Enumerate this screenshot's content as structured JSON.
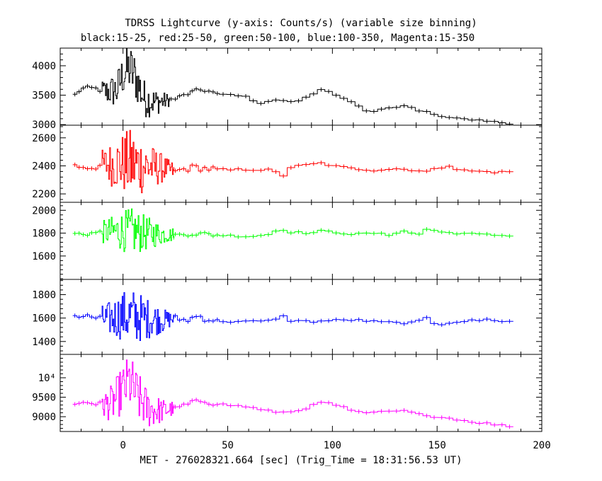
{
  "chart_data": {
    "type": "line",
    "title": "TDRSS Lightcurve (y-axis: Counts/s) (variable size binning)",
    "subtitle": "black:15-25, red:25-50, green:50-100, blue:100-350, Magenta:15-350",
    "xlabel": "MET - 276028321.664 [sec] (Trig_Time = 18:31:56.53 UT)",
    "xlim": [
      -30,
      200
    ],
    "xticks": [
      0,
      50,
      100,
      150,
      200
    ],
    "panels": [
      {
        "name": "black:15-25",
        "color": "#000000",
        "ylim": [
          2990,
          4300
        ],
        "yticks": [
          3000,
          3500,
          4000
        ],
        "ytick_labels": [
          "3000",
          "3500",
          "4000"
        ],
        "fine": {
          "x_start": -10,
          "x_end": 22,
          "step": 0.4,
          "spread_center": 900,
          "spread_edge": 220
        },
        "anchors": [
          [
            -24,
            3470
          ],
          [
            -20,
            3610
          ],
          [
            -14,
            3620
          ],
          [
            -8,
            3560
          ],
          [
            -3,
            3580
          ],
          [
            0,
            3850
          ],
          [
            3,
            3950
          ],
          [
            6,
            3800
          ],
          [
            10,
            3450
          ],
          [
            15,
            3380
          ],
          [
            20,
            3400
          ],
          [
            26,
            3450
          ],
          [
            32,
            3540
          ],
          [
            38,
            3600
          ],
          [
            45,
            3520
          ],
          [
            55,
            3500
          ],
          [
            60,
            3460
          ],
          [
            65,
            3360
          ],
          [
            70,
            3400
          ],
          [
            76,
            3420
          ],
          [
            80,
            3380
          ],
          [
            85,
            3420
          ],
          [
            90,
            3500
          ],
          [
            94,
            3600
          ],
          [
            98,
            3580
          ],
          [
            103,
            3480
          ],
          [
            108,
            3400
          ],
          [
            113,
            3300
          ],
          [
            117,
            3200
          ],
          [
            122,
            3240
          ],
          [
            127,
            3290
          ],
          [
            132,
            3310
          ],
          [
            136,
            3340
          ],
          [
            140,
            3230
          ],
          [
            145,
            3220
          ],
          [
            150,
            3150
          ],
          [
            155,
            3120
          ],
          [
            160,
            3100
          ],
          [
            165,
            3090
          ],
          [
            170,
            3080
          ],
          [
            175,
            3060
          ],
          [
            180,
            3040
          ],
          [
            185,
            3010
          ]
        ]
      },
      {
        "name": "red:25-50",
        "color": "#ff0000",
        "ylim": [
          2140,
          2690
        ],
        "yticks": [
          2200,
          2400,
          2600
        ],
        "ytick_labels": [
          "2200",
          "2400",
          "2600"
        ],
        "fine": {
          "x_start": -10,
          "x_end": 24,
          "step": 0.4,
          "spread_center": 520,
          "spread_edge": 140
        },
        "anchors": [
          [
            -24,
            2400
          ],
          [
            -15,
            2390
          ],
          [
            -8,
            2410
          ],
          [
            0,
            2420
          ],
          [
            10,
            2400
          ],
          [
            20,
            2380
          ],
          [
            25,
            2360
          ],
          [
            30,
            2380
          ],
          [
            35,
            2390
          ],
          [
            40,
            2380
          ],
          [
            50,
            2370
          ],
          [
            60,
            2375
          ],
          [
            70,
            2370
          ],
          [
            77,
            2330
          ],
          [
            80,
            2390
          ],
          [
            90,
            2410
          ],
          [
            95,
            2420
          ],
          [
            100,
            2400
          ],
          [
            110,
            2380
          ],
          [
            120,
            2370
          ],
          [
            130,
            2380
          ],
          [
            140,
            2370
          ],
          [
            145,
            2360
          ],
          [
            150,
            2380
          ],
          [
            157,
            2410
          ],
          [
            160,
            2370
          ],
          [
            170,
            2360
          ],
          [
            180,
            2355
          ],
          [
            185,
            2360
          ]
        ]
      },
      {
        "name": "green:50-100",
        "color": "#00ff00",
        "ylim": [
          1395,
          2070
        ],
        "yticks": [
          1600,
          1800,
          2000
        ],
        "ytick_labels": [
          "1600",
          "1800",
          "2000"
        ],
        "fine": {
          "x_start": -10,
          "x_end": 24,
          "step": 0.4,
          "spread_center": 420,
          "spread_edge": 130
        },
        "anchors": [
          [
            -24,
            1790
          ],
          [
            -15,
            1800
          ],
          [
            -8,
            1810
          ],
          [
            0,
            1820
          ],
          [
            10,
            1800
          ],
          [
            20,
            1790
          ],
          [
            26,
            1780
          ],
          [
            32,
            1800
          ],
          [
            40,
            1790
          ],
          [
            50,
            1780
          ],
          [
            60,
            1770
          ],
          [
            70,
            1790
          ],
          [
            75,
            1840
          ],
          [
            80,
            1810
          ],
          [
            90,
            1800
          ],
          [
            95,
            1820
          ],
          [
            100,
            1810
          ],
          [
            110,
            1790
          ],
          [
            120,
            1800
          ],
          [
            128,
            1780
          ],
          [
            133,
            1830
          ],
          [
            137,
            1800
          ],
          [
            142,
            1790
          ],
          [
            146,
            1850
          ],
          [
            150,
            1810
          ],
          [
            160,
            1800
          ],
          [
            170,
            1790
          ],
          [
            180,
            1780
          ],
          [
            185,
            1780
          ]
        ]
      },
      {
        "name": "blue:100-350",
        "color": "#0000ff",
        "ylim": [
          1290,
          1930
        ],
        "yticks": [
          1400,
          1600,
          1800
        ],
        "ytick_labels": [
          "1400",
          "1600",
          "1800"
        ],
        "fine": {
          "x_start": -10,
          "x_end": 24,
          "step": 0.4,
          "spread_center": 500,
          "spread_edge": 150
        },
        "anchors": [
          [
            -24,
            1620
          ],
          [
            -15,
            1610
          ],
          [
            -8,
            1590
          ],
          [
            0,
            1620
          ],
          [
            10,
            1600
          ],
          [
            20,
            1580
          ],
          [
            25,
            1600
          ],
          [
            30,
            1580
          ],
          [
            36,
            1620
          ],
          [
            40,
            1590
          ],
          [
            50,
            1570
          ],
          [
            60,
            1570
          ],
          [
            70,
            1575
          ],
          [
            76,
            1620
          ],
          [
            80,
            1580
          ],
          [
            90,
            1570
          ],
          [
            100,
            1580
          ],
          [
            110,
            1585
          ],
          [
            120,
            1570
          ],
          [
            130,
            1560
          ],
          [
            140,
            1560
          ],
          [
            145,
            1600
          ],
          [
            150,
            1540
          ],
          [
            155,
            1560
          ],
          [
            160,
            1570
          ],
          [
            170,
            1580
          ],
          [
            175,
            1590
          ],
          [
            180,
            1575
          ],
          [
            185,
            1570
          ]
        ]
      },
      {
        "name": "Magenta:15-350",
        "color": "#ff00ff",
        "ylim": [
          8620,
          10600
        ],
        "yticks": [
          9000,
          9500,
          10000
        ],
        "ytick_labels": [
          "9000",
          "9500",
          "10⁴"
        ],
        "fine": {
          "x_start": -10,
          "x_end": 24,
          "step": 0.4,
          "spread_center": 1500,
          "spread_edge": 420
        },
        "anchors": [
          [
            -24,
            9280
          ],
          [
            -20,
            9380
          ],
          [
            -15,
            9370
          ],
          [
            -10,
            9300
          ],
          [
            -5,
            9350
          ],
          [
            0,
            9700
          ],
          [
            3,
            9900
          ],
          [
            7,
            9500
          ],
          [
            12,
            9200
          ],
          [
            18,
            9150
          ],
          [
            24,
            9200
          ],
          [
            30,
            9300
          ],
          [
            38,
            9420
          ],
          [
            45,
            9330
          ],
          [
            50,
            9300
          ],
          [
            60,
            9250
          ],
          [
            70,
            9150
          ],
          [
            75,
            9080
          ],
          [
            80,
            9140
          ],
          [
            86,
            9150
          ],
          [
            91,
            9330
          ],
          [
            95,
            9400
          ],
          [
            100,
            9300
          ],
          [
            105,
            9250
          ],
          [
            110,
            9150
          ],
          [
            115,
            9080
          ],
          [
            120,
            9100
          ],
          [
            126,
            9150
          ],
          [
            130,
            9120
          ],
          [
            135,
            9160
          ],
          [
            140,
            9060
          ],
          [
            145,
            9050
          ],
          [
            150,
            8990
          ],
          [
            155,
            8970
          ],
          [
            160,
            8930
          ],
          [
            165,
            8880
          ],
          [
            170,
            8850
          ],
          [
            175,
            8820
          ],
          [
            180,
            8780
          ],
          [
            185,
            8760
          ]
        ]
      }
    ]
  }
}
